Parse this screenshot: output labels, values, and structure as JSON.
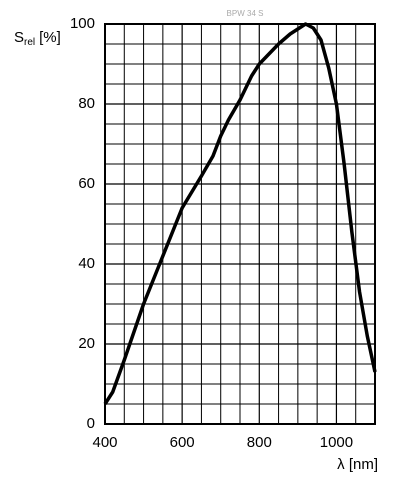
{
  "chart_data": {
    "type": "line",
    "title": "BPW 34 S",
    "xlabel": "λ [nm]",
    "ylabel": {
      "main": "S",
      "sub": "rel",
      "unit": "[%]"
    },
    "x": [
      400,
      420,
      450,
      500,
      550,
      600,
      650,
      680,
      700,
      720,
      750,
      780,
      800,
      850,
      880,
      920,
      940,
      960,
      980,
      1000,
      1020,
      1040,
      1060,
      1080,
      1100
    ],
    "series": [
      {
        "name": "S_rel",
        "color": "#000000",
        "values": [
          5,
          8,
          16,
          30,
          42,
          54,
          62,
          67,
          72,
          76,
          81,
          87,
          90,
          95,
          97.5,
          100,
          99,
          96,
          89,
          80,
          65,
          48,
          33,
          22,
          13
        ]
      }
    ],
    "xlim": [
      400,
      1100
    ],
    "xticks": [
      400,
      600,
      800,
      1000
    ],
    "ylim": [
      0,
      100
    ],
    "yticks": [
      0,
      20,
      40,
      60,
      80,
      100
    ],
    "xminor_ticks": [
      450,
      500,
      550,
      650,
      700,
      750,
      850,
      900,
      950,
      1050
    ],
    "yminor_ticks": [
      5,
      10,
      15,
      25,
      30,
      35,
      45,
      50,
      55,
      65,
      70,
      75,
      85,
      90,
      95
    ],
    "grid": true
  }
}
